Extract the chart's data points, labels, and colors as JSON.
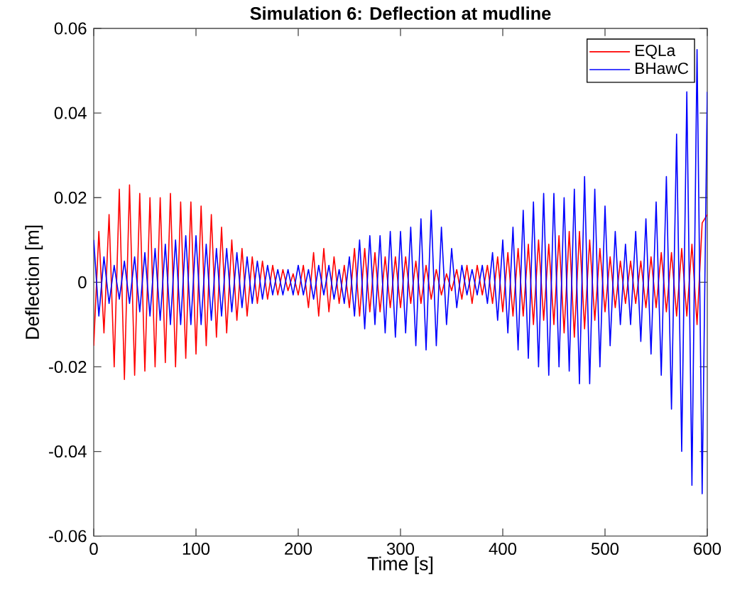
{
  "chart_data": {
    "type": "line",
    "title": "Simulation 6: Deflection at mudline",
    "xlabel": "Time [s]",
    "ylabel": "Deflection [m]",
    "x": [
      0,
      5,
      10,
      15,
      20,
      25,
      30,
      35,
      40,
      45,
      50,
      55,
      60,
      65,
      70,
      75,
      80,
      85,
      90,
      95,
      100,
      105,
      110,
      115,
      120,
      125,
      130,
      135,
      140,
      145,
      150,
      155,
      160,
      165,
      170,
      175,
      180,
      185,
      190,
      195,
      200,
      205,
      210,
      215,
      220,
      225,
      230,
      235,
      240,
      245,
      250,
      255,
      260,
      265,
      270,
      275,
      280,
      285,
      290,
      295,
      300,
      305,
      310,
      315,
      320,
      325,
      330,
      335,
      340,
      345,
      350,
      355,
      360,
      365,
      370,
      375,
      380,
      385,
      390,
      395,
      400,
      405,
      410,
      415,
      420,
      425,
      430,
      435,
      440,
      445,
      450,
      455,
      460,
      465,
      470,
      475,
      480,
      485,
      490,
      495,
      500,
      505,
      510,
      515,
      520,
      525,
      530,
      535,
      540,
      545,
      550,
      555,
      560,
      565,
      570,
      575,
      580,
      585,
      590,
      595,
      600
    ],
    "series": [
      {
        "name": "EQLa",
        "color": "#ff0000",
        "values": [
          -0.015,
          0.012,
          -0.012,
          0.016,
          -0.02,
          0.022,
          -0.023,
          0.023,
          -0.022,
          0.021,
          -0.021,
          0.02,
          -0.02,
          0.02,
          -0.019,
          0.021,
          -0.02,
          0.019,
          -0.018,
          0.019,
          -0.017,
          0.018,
          -0.015,
          0.016,
          -0.013,
          0.013,
          -0.012,
          0.01,
          -0.009,
          0.008,
          -0.008,
          0.006,
          -0.005,
          0.005,
          -0.004,
          0.004,
          -0.003,
          0.003,
          -0.002,
          0.002,
          -0.003,
          0.004,
          -0.006,
          0.007,
          -0.008,
          0.008,
          -0.007,
          0.006,
          -0.005,
          0.004,
          -0.006,
          0.008,
          -0.008,
          0.008,
          -0.007,
          0.007,
          -0.007,
          0.006,
          -0.006,
          0.006,
          -0.006,
          0.006,
          -0.005,
          0.005,
          -0.005,
          0.004,
          -0.004,
          0.003,
          -0.003,
          0.002,
          -0.002,
          0.003,
          -0.004,
          0.004,
          -0.005,
          0.004,
          -0.003,
          0.004,
          -0.005,
          0.006,
          -0.007,
          0.007,
          -0.008,
          0.008,
          -0.008,
          0.009,
          -0.01,
          0.01,
          -0.009,
          0.009,
          -0.01,
          0.011,
          -0.012,
          0.012,
          -0.013,
          0.012,
          -0.011,
          0.01,
          -0.009,
          0.008,
          -0.007,
          0.006,
          -0.006,
          0.005,
          -0.005,
          0.005,
          -0.005,
          0.005,
          -0.006,
          0.006,
          -0.006,
          0.007,
          -0.007,
          0.007,
          -0.008,
          0.008,
          -0.008,
          0.009,
          -0.01,
          0.014,
          0.016
        ]
      },
      {
        "name": "BHawC",
        "color": "#0000ff",
        "values": [
          0.01,
          -0.008,
          0.006,
          -0.005,
          0.004,
          -0.004,
          0.005,
          -0.005,
          0.006,
          -0.007,
          0.007,
          -0.008,
          0.008,
          -0.009,
          0.009,
          -0.01,
          0.01,
          -0.01,
          0.011,
          -0.01,
          0.011,
          -0.01,
          0.009,
          -0.009,
          0.008,
          -0.008,
          0.008,
          -0.007,
          0.007,
          -0.006,
          0.006,
          -0.005,
          0.005,
          -0.004,
          0.004,
          -0.003,
          0.003,
          -0.003,
          0.003,
          -0.003,
          0.004,
          -0.003,
          0.003,
          -0.004,
          0.004,
          -0.003,
          0.004,
          -0.004,
          0.003,
          -0.005,
          0.006,
          -0.008,
          0.01,
          -0.011,
          0.011,
          -0.01,
          0.011,
          -0.012,
          0.012,
          -0.013,
          0.012,
          -0.012,
          0.013,
          -0.015,
          0.015,
          -0.016,
          0.017,
          -0.015,
          0.013,
          -0.01,
          0.008,
          -0.006,
          0.004,
          -0.003,
          0.003,
          -0.003,
          0.004,
          -0.005,
          0.007,
          -0.009,
          0.01,
          -0.012,
          0.013,
          -0.016,
          0.017,
          -0.018,
          0.019,
          -0.02,
          0.021,
          -0.022,
          0.021,
          -0.02,
          0.02,
          -0.021,
          0.022,
          -0.024,
          0.025,
          -0.024,
          0.022,
          -0.02,
          0.018,
          -0.015,
          0.012,
          -0.01,
          0.009,
          -0.01,
          0.012,
          -0.014,
          0.015,
          -0.017,
          0.019,
          -0.022,
          0.025,
          -0.03,
          0.035,
          -0.04,
          0.045,
          -0.048,
          0.055,
          -0.05,
          0.045
        ]
      }
    ],
    "xlim": [
      0,
      600
    ],
    "xticks": [
      0,
      100,
      200,
      300,
      400,
      500,
      600
    ],
    "ylim": [
      -0.06,
      0.06
    ],
    "yticks": [
      -0.06,
      -0.04,
      -0.02,
      0,
      0.02,
      0.04,
      0.06
    ],
    "grid": false,
    "legend": "top right",
    "marker": "none",
    "line_style": "solid"
  }
}
